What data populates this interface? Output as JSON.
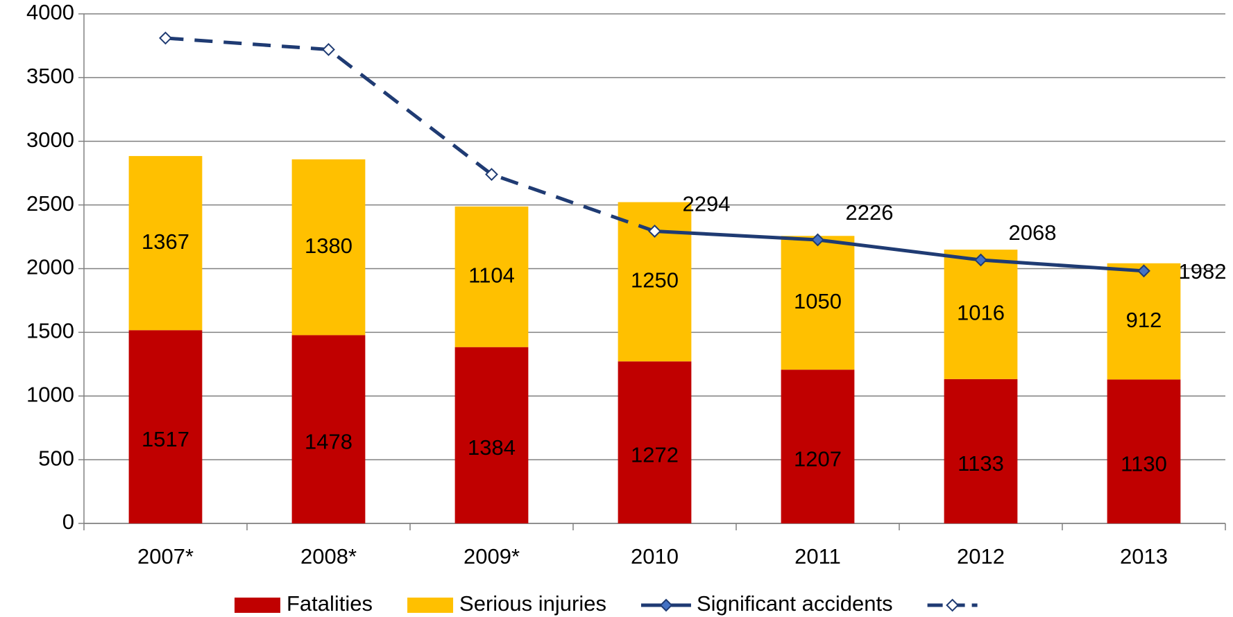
{
  "chart_data": {
    "type": "bar",
    "categories": [
      "2007*",
      "2008*",
      "2009*",
      "2010",
      "2011",
      "2012",
      "2013"
    ],
    "series": [
      {
        "name": "Fatalities",
        "type": "bar",
        "color": "#c00000",
        "values": [
          1517,
          1478,
          1384,
          1272,
          1207,
          1133,
          1130
        ]
      },
      {
        "name": "Serious injuries",
        "type": "bar",
        "color": "#ffc000",
        "values": [
          1367,
          1380,
          1104,
          1250,
          1050,
          1016,
          912
        ]
      },
      {
        "name": "Significant accidents",
        "type": "line",
        "color": "#1f3b73",
        "marker_color": "#4472c4",
        "labels": true,
        "values": [
          null,
          null,
          null,
          2294,
          2226,
          2068,
          1982
        ]
      },
      {
        "type": "line",
        "dashed": true,
        "color": "#1f3b73",
        "marker_color": "#ffffff",
        "values": [
          3810,
          3720,
          2740,
          2294,
          null,
          null,
          null
        ]
      }
    ],
    "ylim": [
      0,
      4000
    ],
    "yticks": [
      0,
      500,
      1000,
      1500,
      2000,
      2500,
      3000,
      3500,
      4000
    ],
    "grid": true,
    "legend": "bottom"
  }
}
